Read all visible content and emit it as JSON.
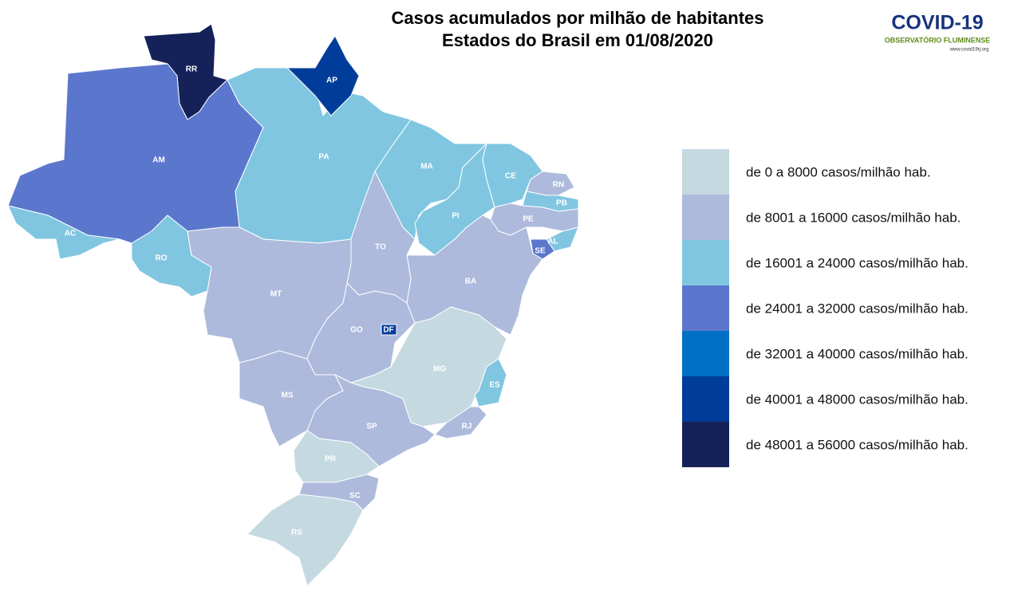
{
  "title": [
    "Casos acumulados por milhão de habitantes",
    "Estados do Brasil em 01/08/2020"
  ],
  "logo": {
    "name": "COVID-19",
    "subtitle": "OBSERVATÓRIO FLUMINENSE",
    "url": "www.covid19rj.org"
  },
  "legend": [
    {
      "label": "de 0 a 8000 casos/milhão hab.",
      "color": "#c5d9e1"
    },
    {
      "label": "de 8001 a 16000 casos/milhão hab.",
      "color": "#adbadc"
    },
    {
      "label": "de 16001 a 24000 casos/milhão hab.",
      "color": "#80c6e0"
    },
    {
      "label": "de 24001 a 32000 casos/milhão hab.",
      "color": "#5b77cd"
    },
    {
      "label": "de 32001 a 40000 casos/milhão hab.",
      "color": "#0070c4"
    },
    {
      "label": "de 40001 a 48000 casos/milhão hab.",
      "color": "#003d9a"
    },
    {
      "label": "de 48001 a 56000 casos/milhão hab.",
      "color": "#15225a"
    }
  ],
  "regions": [
    {
      "label": "RR",
      "color": "#15225a"
    },
    {
      "label": "AM",
      "color": "#5b77cd"
    },
    {
      "label": "AC",
      "color": "#80c6e0"
    },
    {
      "label": "RO",
      "color": "#80c6e0"
    },
    {
      "label": "PA",
      "color": "#80c6e0"
    },
    {
      "label": "AP",
      "color": "#003d9a"
    },
    {
      "label": "MA",
      "color": "#80c6e0"
    },
    {
      "label": "PI",
      "color": "#80c6e0"
    },
    {
      "label": "CE",
      "color": "#80c6e0"
    },
    {
      "label": "RN",
      "color": "#adbadc"
    },
    {
      "label": "PB",
      "color": "#80c6e0"
    },
    {
      "label": "PE",
      "color": "#adbadc"
    },
    {
      "label": "AL",
      "color": "#80c6e0"
    },
    {
      "label": "SE",
      "color": "#5b77cd"
    },
    {
      "label": "BA",
      "color": "#adbadc"
    },
    {
      "label": "TO",
      "color": "#adbadc"
    },
    {
      "label": "MT",
      "color": "#adbadc"
    },
    {
      "label": "GO",
      "color": "#adbadc"
    },
    {
      "label": "DF",
      "color": "#003d9a"
    },
    {
      "label": "MS",
      "color": "#adbadc"
    },
    {
      "label": "MG",
      "color": "#c5d9e1"
    },
    {
      "label": "ES",
      "color": "#80c6e0"
    },
    {
      "label": "RJ",
      "color": "#adbadc"
    },
    {
      "label": "SP",
      "color": "#adbadc"
    },
    {
      "label": "PR",
      "color": "#c5d9e1"
    },
    {
      "label": "SC",
      "color": "#adbadc"
    },
    {
      "label": "RS",
      "color": "#c5d9e1"
    }
  ]
}
